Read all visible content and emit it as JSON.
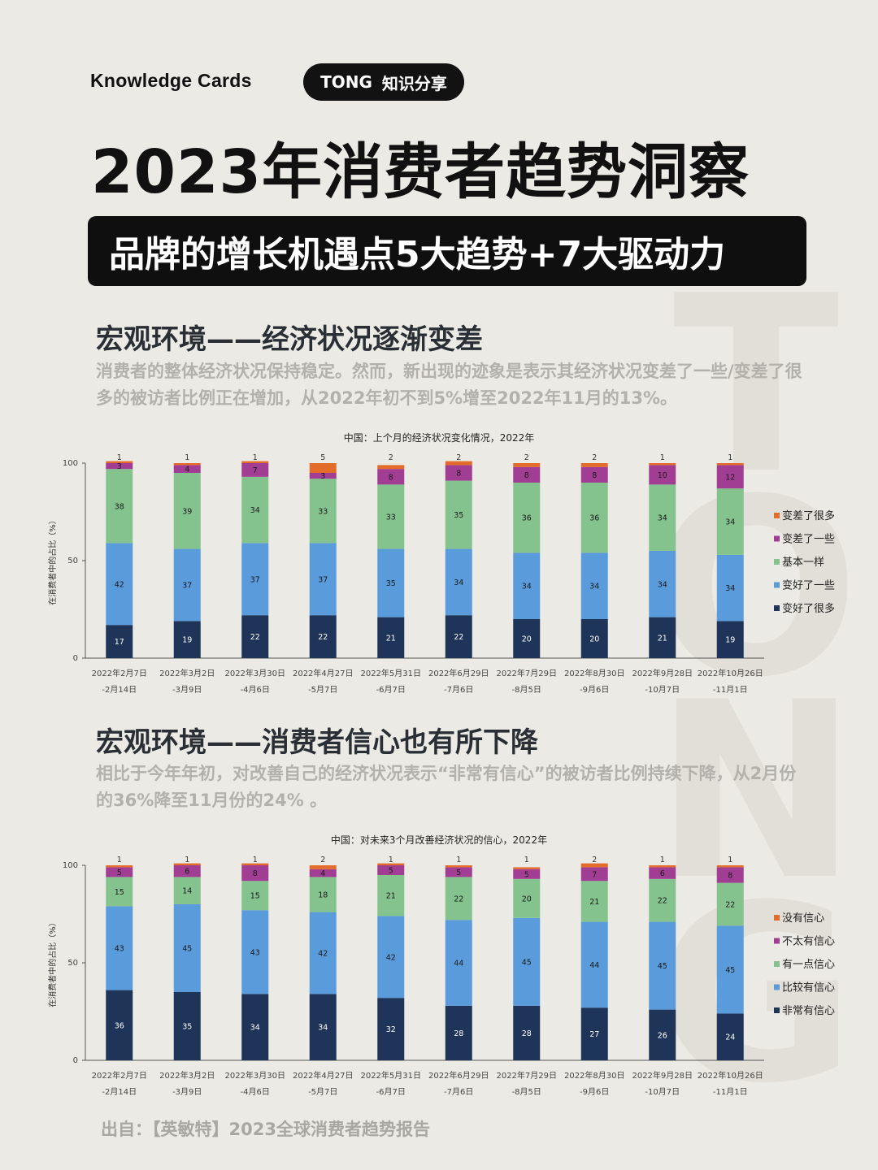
{
  "header": {
    "kicker": "Knowledge Cards",
    "brand_name": "TONG",
    "brand_tag": "知识分享",
    "title": "2023年消费者趋势洞察",
    "subtitle": "品牌的增长机遇点5大趋势+7大驱动力"
  },
  "watermark": [
    "T",
    "O",
    "N",
    "G"
  ],
  "sections": [
    {
      "title": "宏观环境——经济状况逐渐变差",
      "text": "消费者的整体经济状况保持稳定。然而，新出现的迹象是表示其经济状况变差了一些/变差了很多的被访者比例正在增加，从2022年初不到5%增至2022年11月的13%。"
    },
    {
      "title": "宏观环境——消费者信心也有所下降",
      "text": "相比于今年年初，对改善自己的经济状况表示“非常有信心”的被访者比例持续下降，从2月份的36%降至11月份的24% 。"
    }
  ],
  "footer": {
    "source": "出自：【英敏特】2023全球消费者趋势报告"
  },
  "chart_data": [
    {
      "type": "bar",
      "stacked": true,
      "title": "中国：上个月的经济状况变化情况，2022年",
      "ylabel": "在消费者中的占比（%）",
      "ylim": [
        0,
        100
      ],
      "yticks": [
        0,
        50,
        100
      ],
      "grid": false,
      "legend_position": "right",
      "categories": [
        [
          "2022年2月7日",
          "-2月14日"
        ],
        [
          "2022年3月2日",
          "-3月9日"
        ],
        [
          "2022年3月30日",
          "-4月6日"
        ],
        [
          "2022年4月27日",
          "-5月7日"
        ],
        [
          "2022年5月31日",
          "-6月7日"
        ],
        [
          "2022年6月29日",
          "-7月6日"
        ],
        [
          "2022年7月29日",
          "-8月5日"
        ],
        [
          "2022年8月30日",
          "-9月6日"
        ],
        [
          "2022年9月28日",
          "-10月7日"
        ],
        [
          "2022年10月26日",
          "-11月1日"
        ]
      ],
      "series": [
        {
          "name": "变好了很多",
          "color": "#1F3459",
          "values": [
            17,
            19,
            22,
            22,
            21,
            22,
            20,
            20,
            21,
            19
          ]
        },
        {
          "name": "变好了一些",
          "color": "#5A9BDB",
          "values": [
            42,
            37,
            37,
            37,
            35,
            34,
            34,
            34,
            34,
            34
          ]
        },
        {
          "name": "基本一样",
          "color": "#84C28E",
          "values": [
            38,
            39,
            34,
            33,
            33,
            35,
            36,
            36,
            34,
            34
          ]
        },
        {
          "name": "变差了一些",
          "color": "#A23D94",
          "values": [
            3,
            4,
            7,
            3,
            8,
            8,
            8,
            8,
            10,
            12
          ]
        },
        {
          "name": "变差了很多",
          "color": "#E46C2B",
          "values": [
            1,
            1,
            1,
            5,
            2,
            2,
            2,
            2,
            1,
            1
          ]
        }
      ]
    },
    {
      "type": "bar",
      "stacked": true,
      "title": "中国：对未来3个月改善经济状况的信心，2022年",
      "ylabel": "在消费者中的占比（%）",
      "ylim": [
        0,
        100
      ],
      "yticks": [
        0,
        50,
        100
      ],
      "grid": false,
      "legend_position": "right",
      "categories": [
        [
          "2022年2月7日",
          "-2月14日"
        ],
        [
          "2022年3月2日",
          "-3月9日"
        ],
        [
          "2022年3月30日",
          "-4月6日"
        ],
        [
          "2022年4月27日",
          "-5月7日"
        ],
        [
          "2022年5月31日",
          "-6月7日"
        ],
        [
          "2022年6月29日",
          "-7月6日"
        ],
        [
          "2022年7月29日",
          "-8月5日"
        ],
        [
          "2022年8月30日",
          "-9月6日"
        ],
        [
          "2022年9月28日",
          "-10月7日"
        ],
        [
          "2022年10月26日",
          "-11月1日"
        ]
      ],
      "series": [
        {
          "name": "非常有信心",
          "color": "#1F3459",
          "values": [
            36,
            35,
            34,
            34,
            32,
            28,
            28,
            27,
            26,
            24
          ]
        },
        {
          "name": "比较有信心",
          "color": "#5A9BDB",
          "values": [
            43,
            45,
            43,
            42,
            42,
            44,
            45,
            44,
            45,
            45
          ]
        },
        {
          "name": "有一点信心",
          "color": "#84C28E",
          "values": [
            15,
            14,
            15,
            18,
            21,
            22,
            20,
            21,
            22,
            22
          ]
        },
        {
          "name": "不太有信心",
          "color": "#A23D94",
          "values": [
            5,
            6,
            8,
            4,
            5,
            5,
            5,
            7,
            6,
            8
          ]
        },
        {
          "name": "没有信心",
          "color": "#E46C2B",
          "values": [
            1,
            1,
            1,
            2,
            1,
            1,
            1,
            2,
            1,
            1
          ]
        }
      ]
    }
  ]
}
